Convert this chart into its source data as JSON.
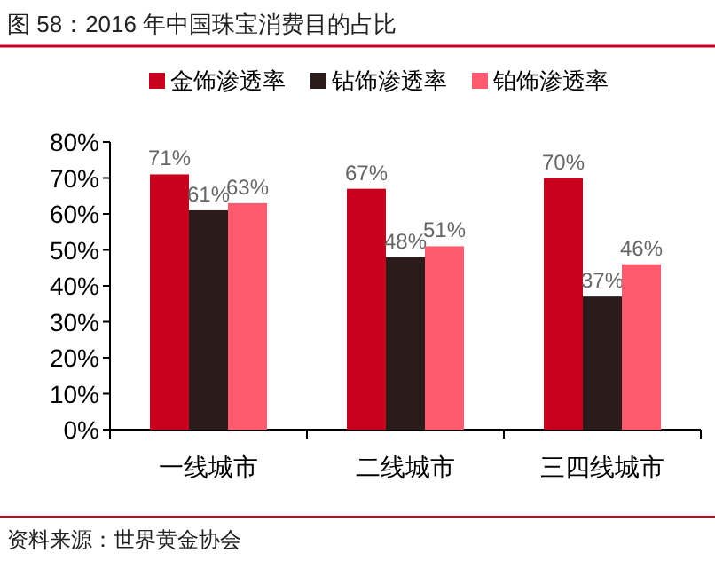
{
  "chart_data": {
    "type": "bar",
    "title": "图 58：2016 年中国珠宝消费目的占比",
    "categories": [
      "一线城市",
      "二线城市",
      "三四线城市"
    ],
    "series": [
      {
        "name": "金饰渗透率",
        "color": "#c8001e",
        "values": [
          71,
          67,
          70
        ],
        "value_labels": [
          "71%",
          "67%",
          "70%"
        ]
      },
      {
        "name": "钻饰渗透率",
        "color": "#2b1b1b",
        "values": [
          61,
          48,
          37
        ],
        "value_labels": [
          "61%",
          "48%",
          "37%"
        ]
      },
      {
        "name": "铂饰渗透率",
        "color": "#ff5b6e",
        "values": [
          63,
          51,
          46
        ],
        "value_labels": [
          "63%",
          "51%",
          "46%"
        ]
      }
    ],
    "ylim": [
      0,
      80
    ],
    "yticks": [
      {
        "value": 0,
        "label": "0%"
      },
      {
        "value": 10,
        "label": "10%"
      },
      {
        "value": 20,
        "label": "20%"
      },
      {
        "value": 30,
        "label": "30%"
      },
      {
        "value": 40,
        "label": "40%"
      },
      {
        "value": 50,
        "label": "50%"
      },
      {
        "value": 60,
        "label": "60%"
      },
      {
        "value": 70,
        "label": "70%"
      },
      {
        "value": 80,
        "label": "80%"
      }
    ],
    "grid": false,
    "legend": "top",
    "annotations": [
      "资料来源：世界黄金协会"
    ]
  }
}
